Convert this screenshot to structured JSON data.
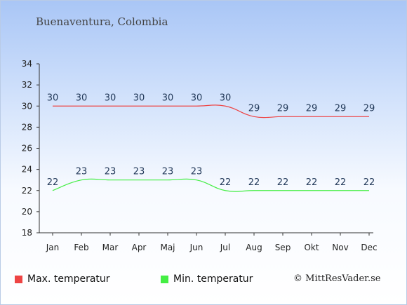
{
  "header": {
    "location": "Buenaventura, Colombia"
  },
  "colors": {
    "max": "#ee4444",
    "min": "#44ee44",
    "axis": "#333333"
  },
  "legend": {
    "max_label": "Max. temperatur",
    "min_label": "Min. temperatur"
  },
  "footer": {
    "copyright": "© MittResVader.se"
  },
  "chart_data": {
    "type": "line",
    "title": "Buenaventura, Colombia",
    "categories": [
      "Jan",
      "Feb",
      "Mar",
      "Apr",
      "Maj",
      "Jun",
      "Jul",
      "Aug",
      "Sep",
      "Okt",
      "Nov",
      "Dec"
    ],
    "series": [
      {
        "name": "Max. temperatur",
        "values": [
          30,
          30,
          30,
          30,
          30,
          30,
          30,
          29,
          29,
          29,
          29,
          29
        ]
      },
      {
        "name": "Min. temperatur",
        "values": [
          22,
          23,
          23,
          23,
          23,
          23,
          22,
          22,
          22,
          22,
          22,
          22
        ]
      }
    ],
    "yticks": [
      18,
      20,
      22,
      24,
      26,
      28,
      30,
      32,
      34
    ],
    "ylim": [
      18,
      34
    ],
    "grid": false,
    "legend_position": "bottom"
  }
}
